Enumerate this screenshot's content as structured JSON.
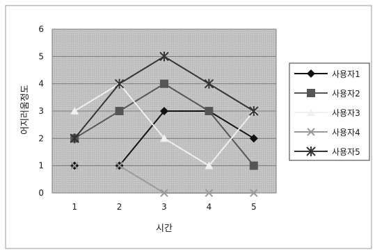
{
  "chart_data": {
    "type": "line",
    "title": "",
    "xlabel": "시간",
    "ylabel": "어지러움정도",
    "categories": [
      "1",
      "2",
      "3",
      "4",
      "5"
    ],
    "x": [
      1,
      2,
      3,
      4,
      5
    ],
    "ylim": [
      0,
      6
    ],
    "yticks": [
      "0",
      "1",
      "2",
      "3",
      "4",
      "5",
      "6"
    ],
    "grid": true,
    "legend_position": "right",
    "series": [
      {
        "name": "사용자1",
        "values": [
          1,
          1,
          3,
          3,
          2
        ],
        "marker": "diamond",
        "color": "#111111",
        "line_segments": [
          [
            1,
            4
          ]
        ]
      },
      {
        "name": "사용자2",
        "values": [
          2,
          3,
          4,
          3,
          1
        ],
        "marker": "square",
        "color": "#555555",
        "line_segments": [
          [
            0,
            4
          ]
        ]
      },
      {
        "name": "사용자3",
        "values": [
          3,
          4,
          2,
          1,
          3
        ],
        "marker": "triangle",
        "color": "#f0f0f0",
        "line_segments": [
          [
            0,
            4
          ]
        ]
      },
      {
        "name": "사용자4",
        "values": [
          1,
          1,
          0,
          0,
          0
        ],
        "marker": "x",
        "color": "#9a9a9a",
        "line_segments": [
          [
            1,
            4
          ]
        ]
      },
      {
        "name": "사용자5",
        "values": [
          2,
          4,
          5,
          4,
          3
        ],
        "marker": "asterisk",
        "color": "#333333",
        "line_segments": [
          [
            0,
            4
          ]
        ]
      }
    ]
  }
}
